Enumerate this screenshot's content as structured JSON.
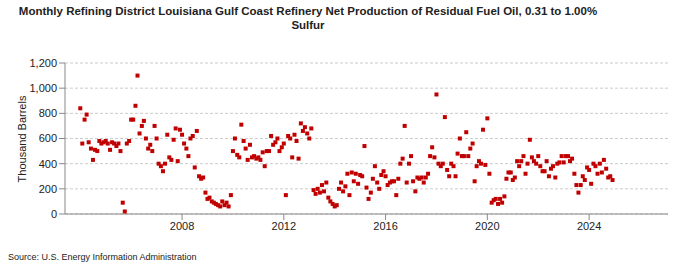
{
  "chart_data": {
    "type": "scatter",
    "title": "Monthly Refining District Louisiana Gulf Coast Refinery Net Production of Residual Fuel Oil, 0.31 to 1.00% Sulfur",
    "y_label": "Thousand Barrels",
    "source": "Source: U.S. Energy Information Administration",
    "color": "#c00000",
    "marker": "square",
    "grid": true,
    "x": [
      2004,
      2004.08,
      2004.17,
      2004.25,
      2004.33,
      2004.42,
      2004.5,
      2004.58,
      2004.67,
      2004.75,
      2004.83,
      2004.92,
      2005,
      2005.08,
      2005.17,
      2005.25,
      2005.33,
      2005.42,
      2005.5,
      2005.58,
      2005.67,
      2005.75,
      2005.83,
      2005.92,
      2006,
      2006.08,
      2006.17,
      2006.25,
      2006.33,
      2006.42,
      2006.5,
      2006.58,
      2006.67,
      2006.75,
      2006.83,
      2006.92,
      2007,
      2007.08,
      2007.17,
      2007.25,
      2007.33,
      2007.42,
      2007.5,
      2007.58,
      2007.67,
      2007.75,
      2007.83,
      2007.92,
      2008,
      2008.08,
      2008.17,
      2008.25,
      2008.33,
      2008.42,
      2008.5,
      2008.58,
      2008.67,
      2008.75,
      2008.83,
      2008.92,
      2009,
      2009.08,
      2009.17,
      2009.25,
      2009.33,
      2009.42,
      2009.5,
      2009.58,
      2009.67,
      2009.75,
      2009.83,
      2009.92,
      2010,
      2010.08,
      2010.17,
      2010.25,
      2010.33,
      2010.42,
      2010.5,
      2010.58,
      2010.67,
      2010.75,
      2010.83,
      2010.92,
      2011,
      2011.08,
      2011.17,
      2011.25,
      2011.33,
      2011.42,
      2011.5,
      2011.58,
      2011.67,
      2011.75,
      2011.83,
      2011.92,
      2012,
      2012.08,
      2012.17,
      2012.25,
      2012.33,
      2012.42,
      2012.5,
      2012.58,
      2012.67,
      2012.75,
      2012.83,
      2012.92,
      2013,
      2013.08,
      2013.17,
      2013.25,
      2013.33,
      2013.42,
      2013.5,
      2013.58,
      2013.67,
      2013.75,
      2013.83,
      2013.92,
      2014,
      2014.08,
      2014.17,
      2014.25,
      2014.33,
      2014.42,
      2014.5,
      2014.58,
      2014.67,
      2014.75,
      2014.83,
      2014.92,
      2015,
      2015.08,
      2015.17,
      2015.25,
      2015.33,
      2015.42,
      2015.5,
      2015.58,
      2015.67,
      2015.75,
      2015.83,
      2015.92,
      2016,
      2016.08,
      2016.17,
      2016.25,
      2016.33,
      2016.42,
      2016.5,
      2016.58,
      2016.67,
      2016.75,
      2016.83,
      2016.92,
      2017,
      2017.08,
      2017.17,
      2017.25,
      2017.33,
      2017.42,
      2017.5,
      2017.58,
      2017.67,
      2017.75,
      2017.83,
      2017.92,
      2018,
      2018.08,
      2018.17,
      2018.25,
      2018.33,
      2018.42,
      2018.5,
      2018.58,
      2018.67,
      2018.75,
      2018.83,
      2018.92,
      2019,
      2019.08,
      2019.17,
      2019.25,
      2019.33,
      2019.42,
      2019.5,
      2019.58,
      2019.67,
      2019.75,
      2019.83,
      2019.92,
      2020,
      2020.08,
      2020.17,
      2020.25,
      2020.33,
      2020.42,
      2020.5,
      2020.58,
      2020.67,
      2020.75,
      2020.83,
      2020.92,
      2021,
      2021.08,
      2021.17,
      2021.25,
      2021.33,
      2021.42,
      2021.5,
      2021.58,
      2021.67,
      2021.75,
      2021.83,
      2021.92,
      2022,
      2022.08,
      2022.17,
      2022.25,
      2022.33,
      2022.42,
      2022.5,
      2022.58,
      2022.67,
      2022.75,
      2022.83,
      2022.92,
      2023,
      2023.08,
      2023.17,
      2023.25,
      2023.33,
      2023.42,
      2023.5,
      2023.58,
      2023.67,
      2023.75,
      2023.83,
      2023.92,
      2024,
      2024.08,
      2024.17,
      2024.25,
      2024.33,
      2024.42,
      2024.5,
      2024.58,
      2024.67,
      2024.75,
      2024.83,
      2024.92
    ],
    "values": [
      840,
      560,
      750,
      790,
      570,
      520,
      430,
      510,
      500,
      580,
      560,
      570,
      580,
      560,
      510,
      570,
      560,
      540,
      560,
      500,
      90,
      20,
      560,
      580,
      750,
      750,
      860,
      1100,
      640,
      700,
      740,
      600,
      520,
      550,
      500,
      700,
      600,
      400,
      380,
      340,
      400,
      630,
      450,
      430,
      590,
      680,
      420,
      670,
      630,
      560,
      520,
      460,
      600,
      620,
      370,
      660,
      300,
      280,
      290,
      170,
      120,
      130,
      100,
      90,
      80,
      70,
      60,
      100,
      70,
      90,
      60,
      150,
      500,
      600,
      470,
      450,
      710,
      580,
      520,
      430,
      550,
      450,
      460,
      440,
      450,
      430,
      490,
      380,
      500,
      500,
      620,
      550,
      570,
      600,
      500,
      530,
      560,
      150,
      620,
      600,
      450,
      630,
      580,
      440,
      720,
      660,
      690,
      640,
      600,
      680,
      190,
      160,
      200,
      170,
      230,
      180,
      250,
      130,
      100,
      80,
      60,
      70,
      200,
      250,
      180,
      220,
      320,
      150,
      330,
      260,
      320,
      240,
      310,
      300,
      540,
      210,
      120,
      170,
      280,
      380,
      250,
      200,
      310,
      340,
      300,
      230,
      250,
      260,
      260,
      150,
      280,
      400,
      440,
      700,
      250,
      400,
      460,
      260,
      180,
      290,
      280,
      290,
      250,
      290,
      320,
      460,
      530,
      450,
      950,
      400,
      380,
      400,
      770,
      350,
      300,
      400,
      380,
      300,
      480,
      600,
      460,
      460,
      650,
      460,
      520,
      560,
      260,
      380,
      420,
      400,
      670,
      390,
      760,
      320,
      90,
      110,
      120,
      80,
      120,
      90,
      140,
      280,
      330,
      330,
      270,
      290,
      420,
      380,
      420,
      460,
      320,
      400,
      590,
      450,
      420,
      400,
      460,
      380,
      340,
      340,
      420,
      300,
      360,
      380,
      290,
      400,
      410,
      460,
      410,
      460,
      460,
      420,
      440,
      320,
      230,
      170,
      230,
      300,
      270,
      370,
      350,
      240,
      400,
      380,
      320,
      400,
      330,
      430,
      360,
      290,
      300,
      270
    ],
    "xlim": [
      2003.4,
      2027.1
    ],
    "xticks": [
      2008,
      2012,
      2016,
      2020,
      2024
    ],
    "ylim": [
      0,
      1200
    ],
    "yticks": [
      0,
      200,
      400,
      600,
      800,
      {
        "value": 1000,
        "label": "1,000"
      },
      {
        "value": 1200,
        "label": "1,200"
      }
    ]
  }
}
